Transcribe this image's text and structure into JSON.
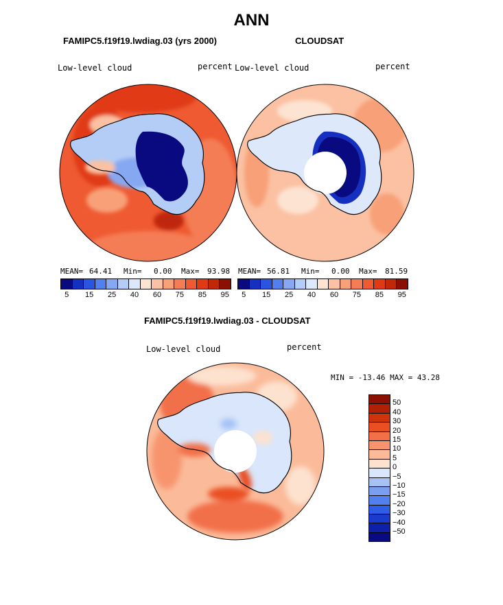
{
  "figure": {
    "title": "ANN",
    "top_left": {
      "case_title": "FAMIPC5.f19f19.lwdiag.03 (yrs 2000)",
      "variable": "Low-level cloud",
      "units": "percent",
      "stats": {
        "mean_label": "MEAN=",
        "mean": "64.41",
        "min_label": "Min=",
        "min": "0.00",
        "max_label": "Max=",
        "max": "93.98"
      }
    },
    "top_right": {
      "case_title": "CLOUDSAT",
      "variable": "Low-level cloud",
      "units": "percent",
      "stats": {
        "mean_label": "MEAN=",
        "mean": "56.81",
        "min_label": "Min=",
        "min": "0.00",
        "max_label": "Max=",
        "max": "81.59"
      }
    },
    "bottom": {
      "case_title": "FAMIPC5.f19f19.lwdiag.03 - CLOUDSAT",
      "variable": "Low-level cloud",
      "units": "percent",
      "minmax": "MIN = -13.46 MAX =  43.28"
    }
  },
  "colorbar_main": {
    "ticks": [
      "5",
      "15",
      "25",
      "40",
      "60",
      "75",
      "85",
      "95"
    ],
    "colors": [
      "#0a0a80",
      "#1530c0",
      "#2a55e0",
      "#5280ee",
      "#86a8f2",
      "#b4cdf6",
      "#dde8fb",
      "#fde3d2",
      "#fbc1a2",
      "#f8a078",
      "#f47d55",
      "#ef5a32",
      "#e03a15",
      "#c02808",
      "#8c1002"
    ]
  },
  "colorbar_diff": {
    "ticks": [
      "50",
      "40",
      "30",
      "20",
      "15",
      "10",
      "5",
      "0",
      "−5",
      "−10",
      "−15",
      "−20",
      "−30",
      "−40",
      "−50"
    ],
    "colors": [
      "#8c1002",
      "#b02006",
      "#d0320c",
      "#ea4f22",
      "#f27048",
      "#f7946e",
      "#fbbb9a",
      "#fde2cf",
      "#d9e6fb",
      "#a6c2f5",
      "#7a9ef0",
      "#5280ee",
      "#2f5ee6",
      "#1a3bcc",
      "#0e1fa8",
      "#0a0a80"
    ]
  }
}
